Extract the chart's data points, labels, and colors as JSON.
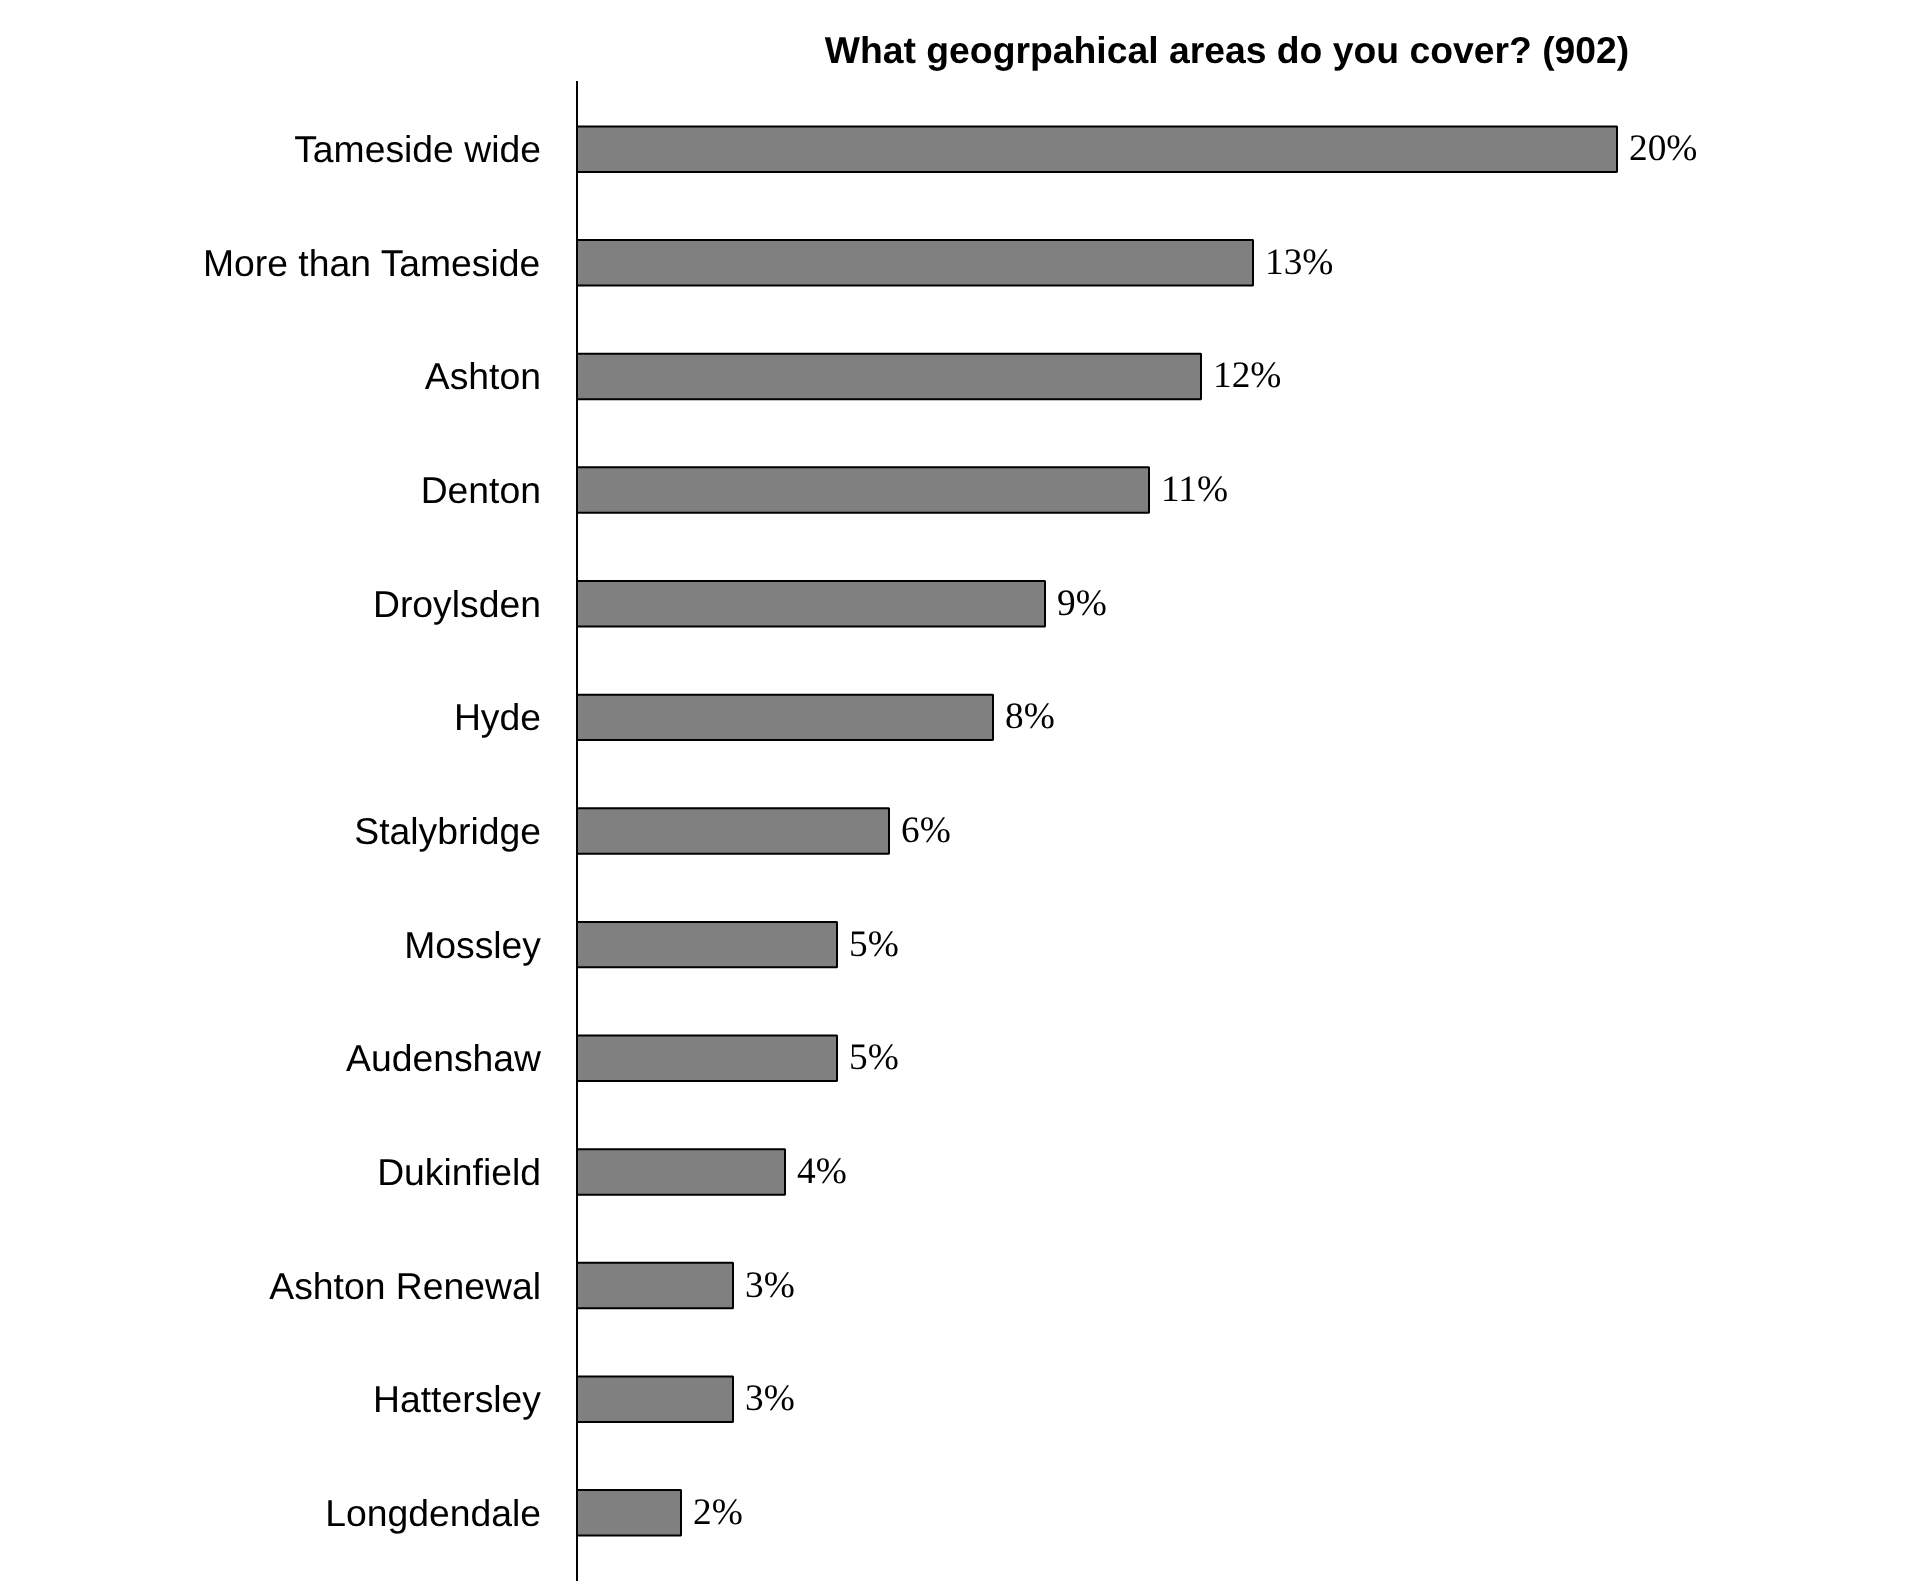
{
  "chart_data": {
    "type": "bar",
    "orientation": "horizontal",
    "title": "What geogrpahical areas do you cover? (902)",
    "categories": [
      "Tameside wide",
      "More than Tameside",
      "Ashton",
      "Denton",
      "Droylsden",
      "Hyde",
      "Stalybridge",
      "Mossley",
      "Audenshaw",
      "Dukinfield",
      "Ashton Renewal",
      "Hattersley",
      "Longdendale"
    ],
    "values": [
      20,
      13,
      12,
      11,
      9,
      8,
      6,
      5,
      5,
      4,
      3,
      3,
      2
    ],
    "value_labels": [
      "20%",
      "13%",
      "12%",
      "11%",
      "9%",
      "8%",
      "6%",
      "5%",
      "5%",
      "4%",
      "3%",
      "3%",
      "2%"
    ],
    "color": "#808080"
  }
}
